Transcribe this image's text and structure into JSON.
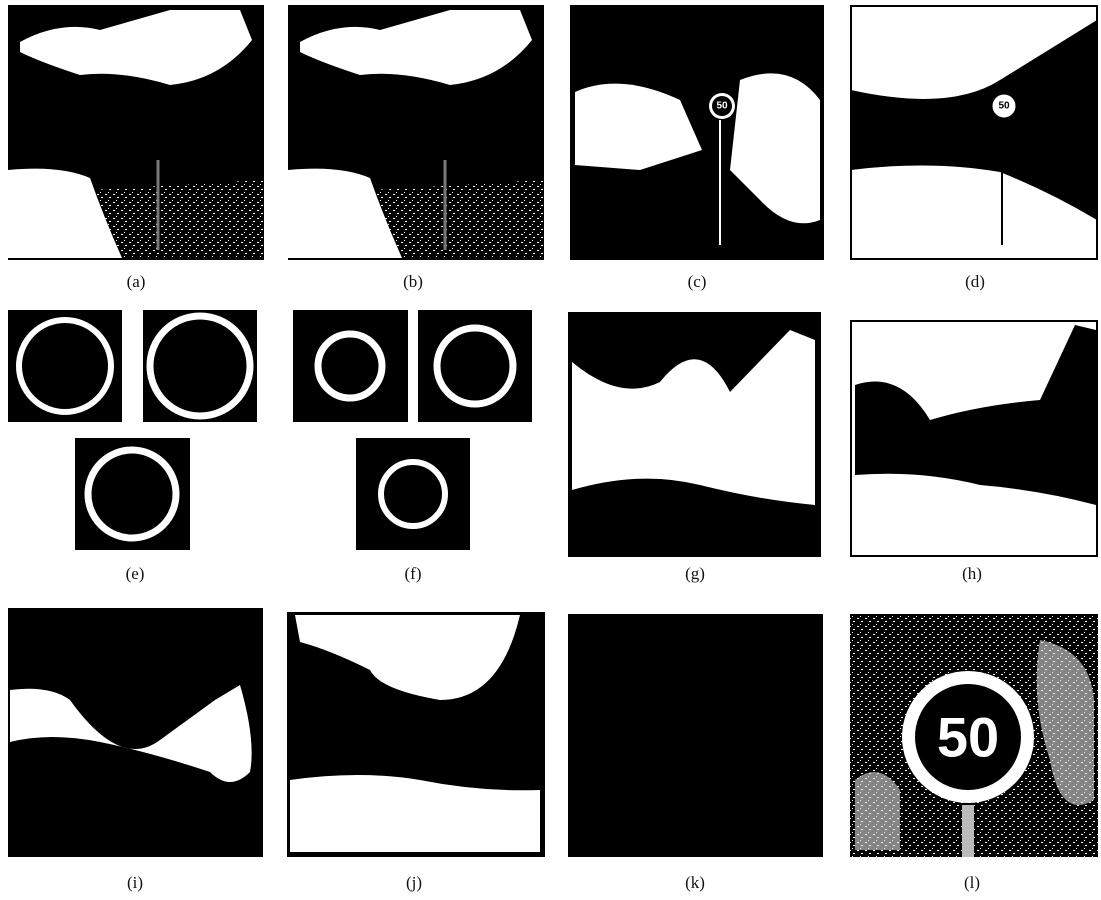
{
  "panels": [
    {
      "label": "(a)"
    },
    {
      "label": "(b)"
    },
    {
      "label": "(c)",
      "sign_text": "50"
    },
    {
      "label": "(d)",
      "sign_text": "50"
    },
    {
      "label": "(e)"
    },
    {
      "label": "(f)"
    },
    {
      "label": "(g)"
    },
    {
      "label": "(h)"
    },
    {
      "label": "(i)"
    },
    {
      "label": "(j)"
    },
    {
      "label": "(k)"
    },
    {
      "label": "(l)",
      "sign_text": "50"
    }
  ]
}
